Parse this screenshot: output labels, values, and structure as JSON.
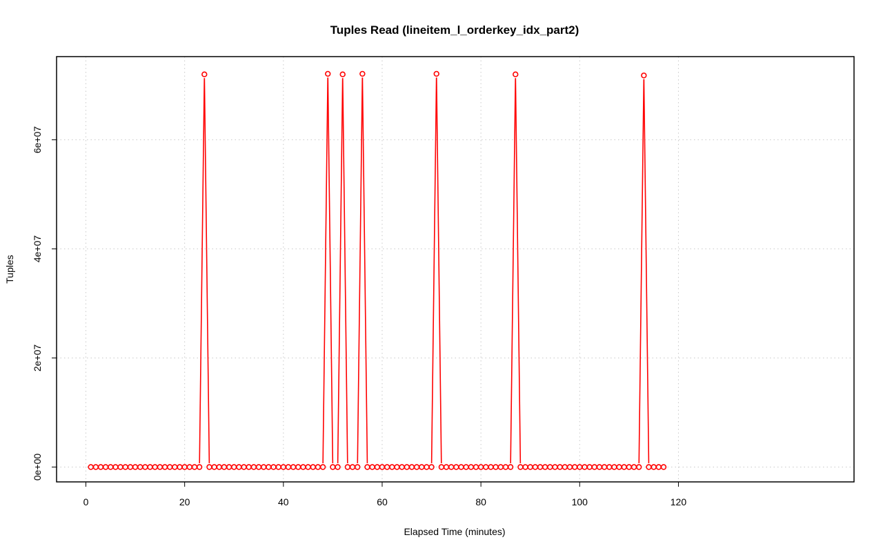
{
  "chart_data": {
    "type": "line",
    "title": "Tuples Read (lineitem_l_orderkey_idx_part2)",
    "xlabel": "Elapsed Time (minutes)",
    "ylabel": "Tuples",
    "xlim": [
      0,
      120
    ],
    "ylim": [
      0,
      72000000
    ],
    "xticks": [
      0,
      20,
      40,
      60,
      80,
      100,
      120
    ],
    "xtick_labels": [
      "0",
      "20",
      "40",
      "60",
      "80",
      "100",
      "120"
    ],
    "yticks": [
      0,
      20000000,
      40000000,
      60000000
    ],
    "ytick_labels": [
      "0e+00",
      "2e+07",
      "4e+07",
      "6e+07"
    ],
    "grid": true,
    "legend": "none",
    "series": [
      {
        "color": "#ff0000",
        "markers": "open-circle",
        "x": [
          1,
          2,
          3,
          4,
          5,
          6,
          7,
          8,
          9,
          10,
          11,
          12,
          13,
          14,
          15,
          16,
          17,
          18,
          19,
          20,
          21,
          22,
          23,
          24,
          25,
          26,
          27,
          28,
          29,
          30,
          31,
          32,
          33,
          34,
          35,
          36,
          37,
          38,
          39,
          40,
          41,
          42,
          43,
          44,
          45,
          46,
          47,
          48,
          49,
          50,
          51,
          52,
          53,
          54,
          55,
          56,
          57,
          58,
          59,
          60,
          61,
          62,
          63,
          64,
          65,
          66,
          67,
          68,
          69,
          70,
          71,
          72,
          73,
          74,
          75,
          76,
          77,
          78,
          79,
          80,
          81,
          82,
          83,
          84,
          85,
          86,
          87,
          88,
          89,
          90,
          91,
          92,
          93,
          94,
          95,
          96,
          97,
          98,
          99,
          100,
          101,
          102,
          103,
          104,
          105,
          106,
          107,
          108,
          109,
          110,
          111,
          112,
          113,
          114,
          115,
          116,
          117
        ],
        "values": [
          0,
          0,
          0,
          0,
          0,
          0,
          0,
          0,
          0,
          0,
          0,
          0,
          0,
          0,
          0,
          0,
          0,
          0,
          0,
          0,
          0,
          0,
          0,
          72000000,
          0,
          0,
          0,
          0,
          0,
          0,
          0,
          0,
          0,
          0,
          0,
          0,
          0,
          0,
          0,
          0,
          0,
          0,
          0,
          0,
          0,
          0,
          0,
          0,
          72100000,
          0,
          0,
          72000000,
          0,
          0,
          0,
          72100000,
          0,
          0,
          0,
          0,
          0,
          0,
          0,
          0,
          0,
          0,
          0,
          0,
          0,
          0,
          72100000,
          0,
          0,
          0,
          0,
          0,
          0,
          0,
          0,
          0,
          0,
          0,
          0,
          0,
          0,
          0,
          72000000,
          0,
          0,
          0,
          0,
          0,
          0,
          0,
          0,
          0,
          0,
          0,
          0,
          0,
          0,
          0,
          0,
          0,
          0,
          0,
          0,
          0,
          0,
          0,
          0,
          0,
          71800000,
          0,
          0,
          0,
          0
        ]
      }
    ]
  }
}
